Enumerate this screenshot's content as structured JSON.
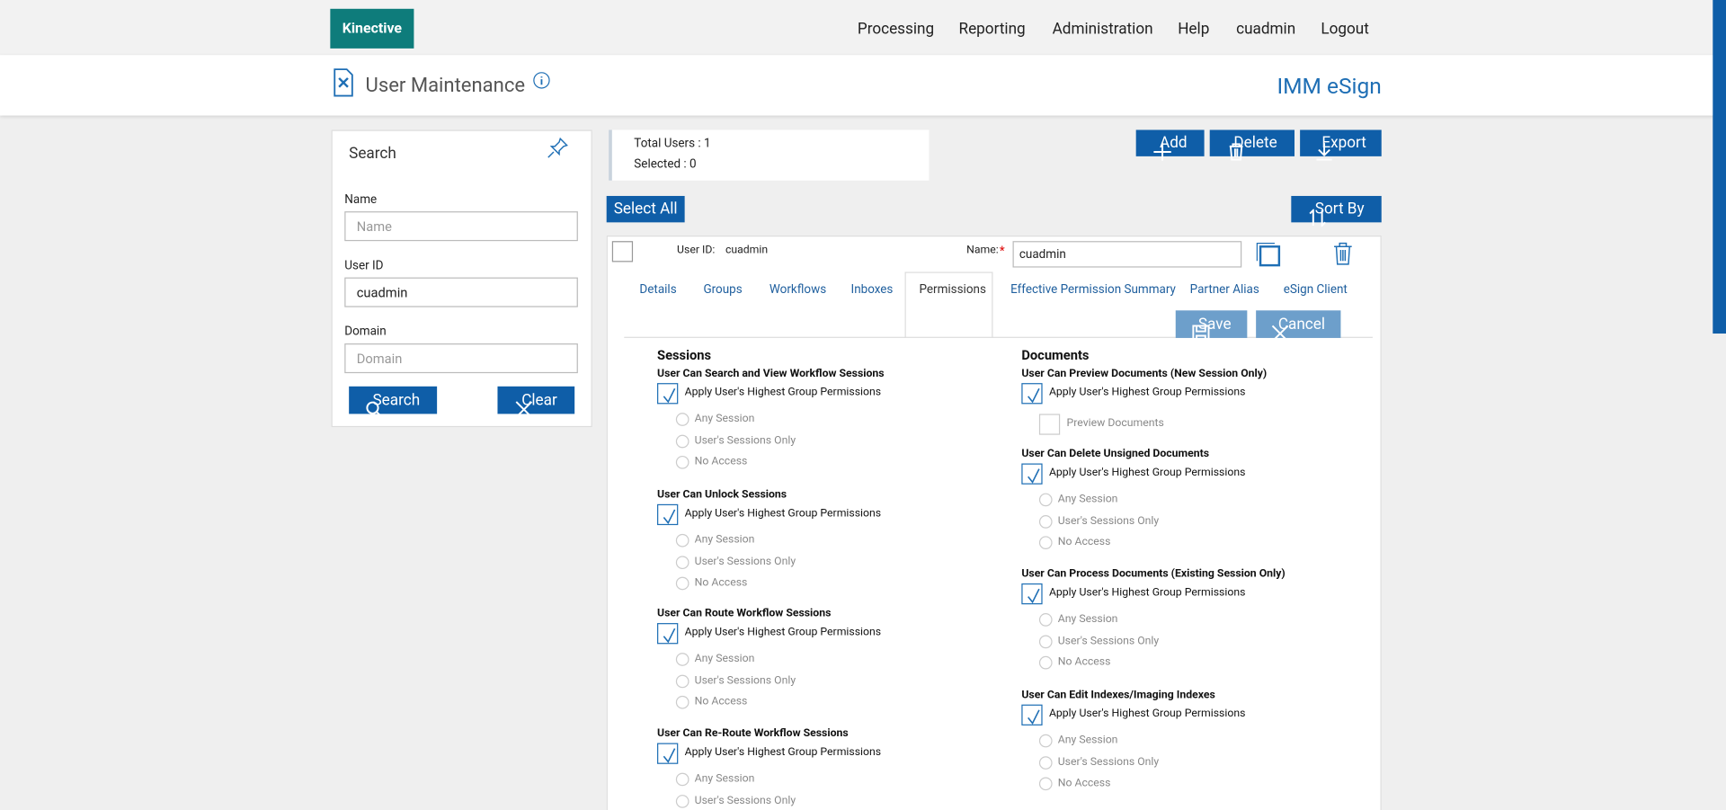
{
  "header": {
    "logo": "Kinective",
    "nav": [
      "Processing",
      "Reporting",
      "Administration",
      "Help",
      "cuadmin",
      "Logout"
    ]
  },
  "page": {
    "title": "User Maintenance",
    "app_name": "IMM eSign"
  },
  "search": {
    "title": "Search",
    "fields": [
      {
        "label": "Name",
        "placeholder": "Name"
      },
      {
        "label": "User ID",
        "value": "cuadmin"
      },
      {
        "label": "Domain",
        "placeholder": "Domain"
      }
    ],
    "buttons": [
      "Search",
      "Clear"
    ]
  },
  "summary": {
    "total_users": "Total Users : 1",
    "selected": "Selected : 0"
  },
  "toolbar": {
    "buttons": [
      "Add",
      "Delete",
      "Export"
    ],
    "select_all": "Select All",
    "sort_by": "Sort By"
  },
  "user": {
    "user_id_label": "User ID:",
    "user_id": "cuadmin",
    "name_label": "Name:",
    "required_mark": "*",
    "name": "cuadmin"
  },
  "tabs": [
    "Details",
    "Groups",
    "Workflows",
    "Inboxes",
    "Permissions",
    "Effective Permission Summary",
    "Partner Alias",
    "eSign Client"
  ],
  "actions": [
    "Save",
    "Cancel"
  ],
  "permissions": {
    "sessions": {
      "heading": "Sessions",
      "groups": [
        {
          "title": "User Can Search and View Workflow Sessions",
          "apply": "Apply User's Highest Group Permissions",
          "options": [
            "Any Session",
            "User's Sessions Only",
            "No Access"
          ]
        },
        {
          "title": "User Can Unlock Sessions",
          "apply": "Apply User's Highest Group Permissions",
          "options": [
            "Any Session",
            "User's Sessions Only",
            "No Access"
          ]
        },
        {
          "title": "User Can Route Workflow Sessions",
          "apply": "Apply User's Highest Group Permissions",
          "options": [
            "Any Session",
            "User's Sessions Only",
            "No Access"
          ]
        },
        {
          "title": "User Can Re-Route Workflow Sessions",
          "apply": "Apply User's Highest Group Permissions",
          "options": [
            "Any Session",
            "User's Sessions Only"
          ]
        }
      ]
    },
    "documents": {
      "heading": "Documents",
      "groups": [
        {
          "title": "User Can Preview Documents (New Session Only)",
          "apply": "Apply User's Highest Group Permissions",
          "checkbox": "Preview Documents"
        },
        {
          "title": "User Can Delete Unsigned Documents",
          "apply": "Apply User's Highest Group Permissions",
          "options": [
            "Any Session",
            "User's Sessions Only",
            "No Access"
          ]
        },
        {
          "title": "User Can Process Documents (Existing Session Only)",
          "apply": "Apply User's Highest Group Permissions",
          "options": [
            "Any Session",
            "User's Sessions Only",
            "No Access"
          ]
        },
        {
          "title": "User Can Edit Indexes/Imaging Indexes",
          "apply": "Apply User's Highest Group Permissions",
          "options": [
            "Any Session",
            "User's Sessions Only",
            "No Access"
          ]
        }
      ]
    }
  }
}
